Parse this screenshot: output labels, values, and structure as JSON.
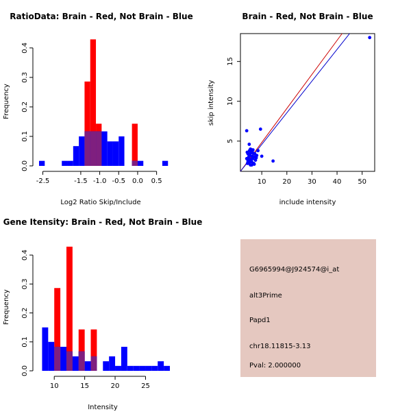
{
  "chart_data": [
    {
      "type": "histogram",
      "title": "RatioData: Brain - Red, Not Brain - Blue",
      "xlabel": "Log2 Ratio Skip/Include",
      "ylabel": "Frequency",
      "xlim": [
        -2.6,
        0.85
      ],
      "ylim": [
        0,
        0.43
      ],
      "xticks": [
        -2.5,
        -1.5,
        -1.0,
        -0.5,
        0.0,
        0.5
      ],
      "xtick_labels": [
        "-2.5",
        "-1.5",
        "-1.0",
        "-0.5",
        "0.0",
        "0.5"
      ],
      "yticks": [
        0.0,
        0.1,
        0.2,
        0.3,
        0.4
      ],
      "ytick_labels": [
        "0.0",
        "0.1",
        "0.2",
        "0.3",
        "0.4"
      ],
      "series": [
        {
          "name": "Brain",
          "color": "#ff0000",
          "bins": [
            [
              -1.4,
              -1.25,
              0.286
            ],
            [
              -1.25,
              -1.1,
              0.429
            ],
            [
              -1.1,
              -0.95,
              0.143
            ],
            [
              -0.15,
              0.0,
              0.143
            ]
          ]
        },
        {
          "name": "Not Brain",
          "color": "#0000ff",
          "bins": [
            [
              -2.6,
              -2.45,
              0.017
            ],
            [
              -2.0,
              -1.85,
              0.017
            ],
            [
              -1.85,
              -1.7,
              0.017
            ],
            [
              -1.7,
              -1.55,
              0.067
            ],
            [
              -1.55,
              -1.4,
              0.1
            ],
            [
              -1.4,
              -1.25,
              0.117
            ],
            [
              -1.25,
              -1.1,
              0.117
            ],
            [
              -1.1,
              -0.95,
              0.117
            ],
            [
              -0.95,
              -0.8,
              0.117
            ],
            [
              -0.8,
              -0.65,
              0.083
            ],
            [
              -0.65,
              -0.5,
              0.083
            ],
            [
              -0.5,
              -0.35,
              0.1
            ],
            [
              -0.15,
              0.0,
              0.017
            ],
            [
              0.0,
              0.15,
              0.017
            ],
            [
              0.65,
              0.8,
              0.017
            ]
          ]
        }
      ]
    },
    {
      "type": "scatter",
      "title": "Brain - Red, Not Brain - Blue",
      "xlabel": "include intensity",
      "ylabel": "skip intensity",
      "xlim": [
        1.5,
        55
      ],
      "ylim": [
        1.2,
        18.5
      ],
      "xticks": [
        10,
        20,
        30,
        40,
        50
      ],
      "xtick_labels": [
        "10",
        "20",
        "30",
        "40",
        "50"
      ],
      "yticks": [
        5,
        10,
        15
      ],
      "ytick_labels": [
        "5",
        "10",
        "15"
      ],
      "points": [
        [
          53,
          18
        ],
        [
          4,
          6.3
        ],
        [
          9.5,
          6.5
        ],
        [
          5,
          4.6
        ],
        [
          14.5,
          2.5
        ],
        [
          10,
          3.1
        ],
        [
          8.5,
          3.8
        ],
        [
          8,
          3.2
        ],
        [
          4.5,
          3.4
        ],
        [
          5,
          3.1
        ],
        [
          5.5,
          3.5
        ],
        [
          6,
          3.7
        ],
        [
          6.5,
          3.9
        ],
        [
          4,
          2.8
        ],
        [
          4.5,
          2.5
        ],
        [
          5,
          2.2
        ],
        [
          5.5,
          2.0
        ],
        [
          6,
          2.4
        ],
        [
          6.5,
          2.8
        ],
        [
          7,
          3.0
        ],
        [
          7.5,
          2.6
        ],
        [
          5.2,
          3.3
        ],
        [
          4.8,
          3.0
        ],
        [
          6.2,
          3.1
        ],
        [
          5.8,
          2.7
        ],
        [
          4.2,
          3.6
        ],
        [
          6.8,
          2.2
        ],
        [
          7.2,
          3.4
        ],
        [
          5.5,
          4.0
        ],
        [
          4.8,
          2.7
        ],
        [
          6,
          2.0
        ],
        [
          5.3,
          2.4
        ],
        [
          4.3,
          2.2
        ],
        [
          7,
          2.1
        ],
        [
          6.5,
          3.5
        ],
        [
          5.1,
          3.8
        ],
        [
          6.1,
          3.9
        ],
        [
          7.8,
          2.9
        ]
      ],
      "lines": [
        {
          "name": "Brain fit",
          "color": "#cc0000",
          "from": [
            1.5,
            1.2
          ],
          "to": [
            42,
            18.5
          ]
        },
        {
          "name": "Not Brain fit",
          "color": "#0000cc",
          "from": [
            1.5,
            1.2
          ],
          "to": [
            45,
            18.5
          ]
        }
      ],
      "point_color": "#0000ff"
    },
    {
      "type": "histogram",
      "title": "Gene Itensity: Brain - Red, Not Brain - Blue",
      "xlabel": "Intensity",
      "ylabel": "Frequency",
      "xlim": [
        7.5,
        29
      ],
      "ylim": [
        0,
        0.45
      ],
      "xticks": [
        10,
        15,
        20,
        25
      ],
      "xtick_labels": [
        "10",
        "15",
        "20",
        "25"
      ],
      "yticks": [
        0.0,
        0.1,
        0.2,
        0.3,
        0.4
      ],
      "ytick_labels": [
        "0.0",
        "0.1",
        "0.2",
        "0.3",
        "0.4"
      ],
      "series": [
        {
          "name": "Brain",
          "color": "#ff0000",
          "bins": [
            [
              10,
              11,
              0.286
            ],
            [
              12,
              13,
              0.429
            ],
            [
              14,
              15,
              0.143
            ],
            [
              16,
              17,
              0.143
            ]
          ]
        },
        {
          "name": "Not Brain",
          "color": "#0000ff",
          "bins": [
            [
              8,
              9,
              0.15
            ],
            [
              9,
              10,
              0.1
            ],
            [
              10,
              11,
              0.083
            ],
            [
              11,
              12,
              0.083
            ],
            [
              12,
              13,
              0.067
            ],
            [
              13,
              14,
              0.05
            ],
            [
              14,
              15,
              0.067
            ],
            [
              15,
              16,
              0.033
            ],
            [
              16,
              17,
              0.05
            ],
            [
              17,
              18,
              0.0
            ],
            [
              18,
              19,
              0.033
            ],
            [
              19,
              20,
              0.05
            ],
            [
              20,
              21,
              0.017
            ],
            [
              21,
              22,
              0.083
            ],
            [
              22,
              23,
              0.017
            ],
            [
              23,
              24,
              0.017
            ],
            [
              24,
              25,
              0.017
            ],
            [
              25,
              26,
              0.017
            ],
            [
              26,
              27,
              0.017
            ],
            [
              27,
              28,
              0.033
            ],
            [
              28,
              29,
              0.017
            ]
          ]
        }
      ]
    }
  ],
  "overlap_color": "#7f1f7f",
  "info_panel": {
    "background": "#e5c8c0",
    "probe_id": "G6965994@J924574@i_at",
    "event_type": "alt3Prime",
    "gene": "Papd1",
    "location": "chr18.11815-3.13",
    "pval": "Pval: 2.000000",
    "pval_color": "#b00000"
  }
}
